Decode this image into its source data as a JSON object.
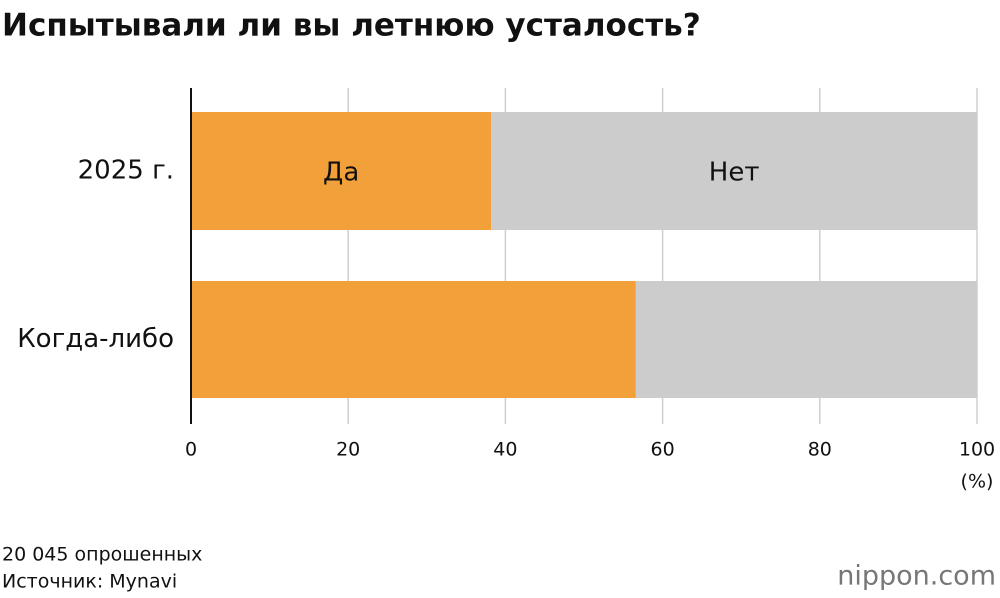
{
  "chart_data": {
    "type": "stacked-barh",
    "title": "Испытывали ли вы летнюю усталость?",
    "categories": [
      "2025 г.",
      "Когда-либо"
    ],
    "series": [
      {
        "name": "Да",
        "color": "#f2a13a",
        "values": [
          38.2,
          56.6
        ]
      },
      {
        "name": "Нет",
        "color": "#cccccc",
        "values": [
          61.8,
          43.4
        ]
      }
    ],
    "xlim": [
      0,
      100
    ],
    "xticks": [
      0,
      20,
      40,
      60,
      80,
      100
    ],
    "x_unit": "(%)",
    "grid": true,
    "notes": [
      "20 045 опрошенных",
      "Источник: Mynavi"
    ],
    "logo": "nippon.com"
  }
}
